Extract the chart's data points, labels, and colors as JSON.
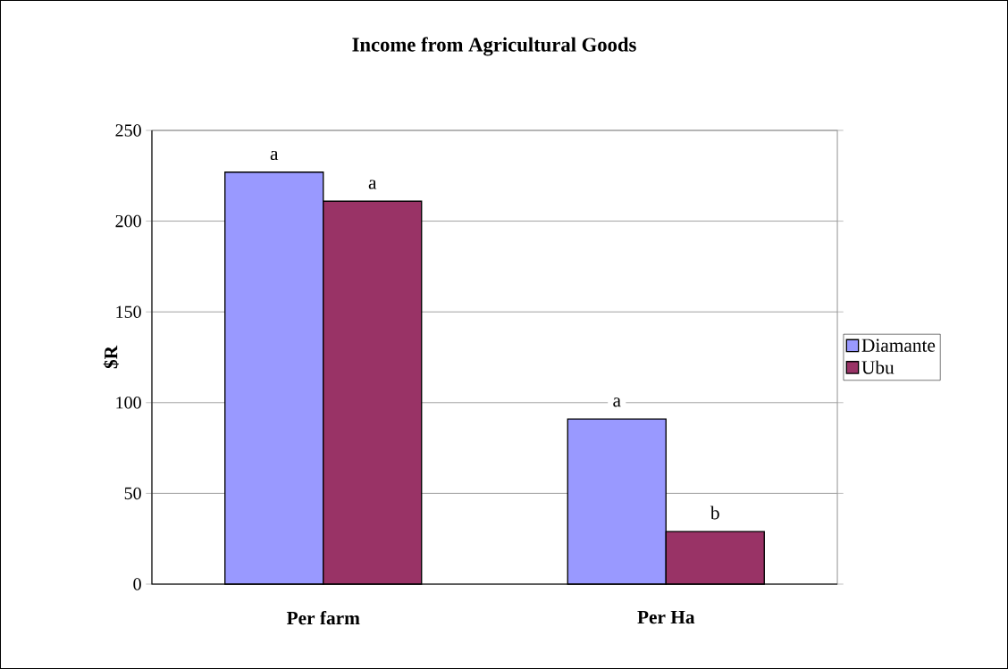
{
  "chart_data": {
    "type": "bar",
    "title": "Income from Agricultural Goods",
    "ylabel": "$R",
    "categories": [
      "Per farm",
      "Per Ha"
    ],
    "series": [
      {
        "name": "Diamante",
        "color": "#9999ff",
        "values": [
          227,
          91
        ]
      },
      {
        "name": "Ubu",
        "color": "#993366",
        "values": [
          211,
          29
        ]
      }
    ],
    "ylim": [
      0,
      250
    ],
    "yticks": [
      0,
      50,
      100,
      150,
      200,
      250
    ],
    "grid": "y",
    "legend": "right",
    "annotations": [
      {
        "text": "a",
        "x": "Per farm",
        "y": 227
      },
      {
        "text": "a",
        "x": "Per farm",
        "y": 211
      },
      {
        "text": "a",
        "x": "Per Ha",
        "y": 91
      },
      {
        "text": "b",
        "x": "Per Ha",
        "y": 29
      }
    ]
  }
}
